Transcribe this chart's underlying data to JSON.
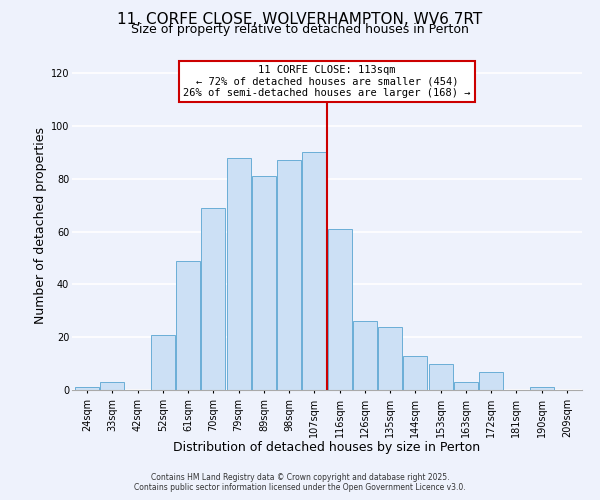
{
  "title": "11, CORFE CLOSE, WOLVERHAMPTON, WV6 7RT",
  "subtitle": "Size of property relative to detached houses in Perton",
  "xlabel": "Distribution of detached houses by size in Perton",
  "ylabel": "Number of detached properties",
  "bar_labels": [
    "24sqm",
    "33sqm",
    "42sqm",
    "52sqm",
    "61sqm",
    "70sqm",
    "79sqm",
    "89sqm",
    "98sqm",
    "107sqm",
    "116sqm",
    "126sqm",
    "135sqm",
    "144sqm",
    "153sqm",
    "163sqm",
    "172sqm",
    "181sqm",
    "190sqm",
    "209sqm"
  ],
  "bar_values": [
    1,
    3,
    0,
    21,
    49,
    69,
    88,
    81,
    87,
    90,
    61,
    26,
    24,
    13,
    10,
    3,
    7,
    0,
    1,
    0
  ],
  "bar_color": "#cce0f5",
  "bar_edge_color": "#6aaed6",
  "vline_x": 113,
  "vline_color": "#cc0000",
  "annotation_title": "11 CORFE CLOSE: 113sqm",
  "annotation_line1": "← 72% of detached houses are smaller (454)",
  "annotation_line2": "26% of semi-detached houses are larger (168) →",
  "annotation_box_color": "#ffffff",
  "annotation_border_color": "#cc0000",
  "ylim": [
    0,
    125
  ],
  "yticks": [
    0,
    20,
    40,
    60,
    80,
    100,
    120
  ],
  "footnote1": "Contains HM Land Registry data © Crown copyright and database right 2025.",
  "footnote2": "Contains public sector information licensed under the Open Government Licence v3.0.",
  "bg_color": "#eef2fc",
  "grid_color": "#ffffff",
  "title_fontsize": 11,
  "subtitle_fontsize": 9,
  "tick_fontsize": 7,
  "axis_label_fontsize": 9
}
